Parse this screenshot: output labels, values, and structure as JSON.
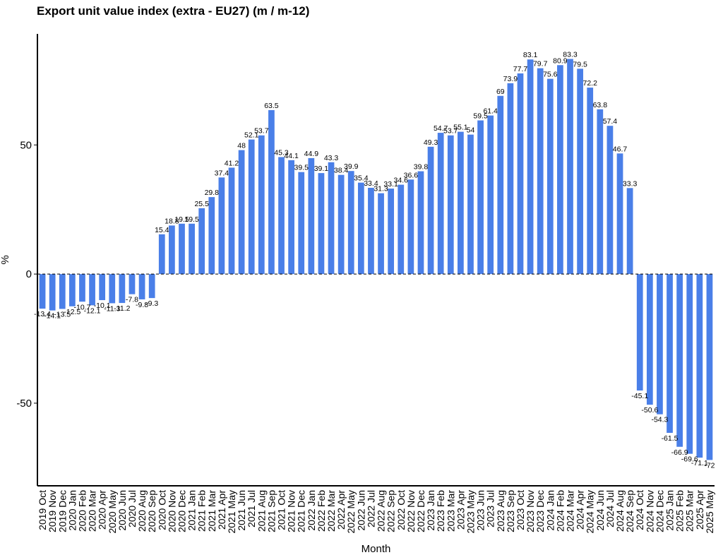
{
  "chart_data": {
    "type": "bar",
    "title": "Export unit value index (extra - EU27) (m / m-12)",
    "xlabel": "Month",
    "ylabel": "%",
    "ylim": [
      -82,
      93
    ],
    "yticks": [
      -50,
      0,
      50
    ],
    "grid": false,
    "bar_color": "#4A7FE8",
    "zero_line": "dashed",
    "categories": [
      "2019 Oct",
      "2019 Nov",
      "2019 Dec",
      "2020 Jan",
      "2020 Feb",
      "2020 Mar",
      "2020 Apr",
      "2020 May",
      "2020 Jun",
      "2020 Jul",
      "2020 Aug",
      "2020 Sep",
      "2020 Oct",
      "2020 Nov",
      "2020 Dec",
      "2021 Jan",
      "2021 Feb",
      "2021 Mar",
      "2021 Apr",
      "2021 May",
      "2021 Jun",
      "2021 Jul",
      "2021 Aug",
      "2021 Sep",
      "2021 Oct",
      "2021 Nov",
      "2021 Dec",
      "2022 Jan",
      "2022 Feb",
      "2022 Mar",
      "2022 Apr",
      "2022 May",
      "2022 Jun",
      "2022 Jul",
      "2022 Aug",
      "2022 Sep",
      "2022 Oct",
      "2022 Nov",
      "2022 Dec",
      "2023 Jan",
      "2023 Feb",
      "2023 Mar",
      "2023 Apr",
      "2023 May",
      "2023 Jun",
      "2023 Jul",
      "2023 Aug",
      "2023 Sep",
      "2023 Oct",
      "2023 Nov",
      "2023 Dec",
      "2024 Jan",
      "2024 Feb",
      "2024 Mar",
      "2024 Apr",
      "2024 May",
      "2024 Jun",
      "2024 Jul",
      "2024 Aug",
      "2024 Sep",
      "2024 Oct",
      "2024 Nov",
      "2024 Dec",
      "2025 Jan",
      "2025 Feb",
      "2025 Mar",
      "2025 Apr",
      "2025 May"
    ],
    "values": [
      -13.4,
      -14.1,
      -13.5,
      -12.5,
      -10.7,
      -12.1,
      -10.1,
      -11.3,
      -11.2,
      -7.8,
      -9.8,
      -9.3,
      15.4,
      18.8,
      19.5,
      19.5,
      25.5,
      29.8,
      37.4,
      41.2,
      48,
      52.1,
      53.7,
      63.5,
      45.3,
      44.1,
      39.5,
      44.9,
      39.1,
      43.3,
      38.4,
      39.9,
      35.4,
      33.4,
      31.3,
      33.1,
      34.6,
      36.6,
      39.8,
      49.3,
      54.7,
      53.7,
      55.1,
      54,
      59.5,
      61.4,
      69,
      73.9,
      77.7,
      83.1,
      79.7,
      75.6,
      80.9,
      83.3,
      79.5,
      72.2,
      63.8,
      57.4,
      46.7,
      33.3,
      -45.1,
      -50.6,
      -54.3,
      -61.5,
      -66.9,
      -69.6,
      -71.1,
      -72
    ],
    "data_labels": [
      "-13.4",
      "-14.1",
      "-13.5",
      "-12.5",
      "-10.7",
      "-12.1",
      "-10.1",
      "-11.3",
      "-11.2",
      "-7.8",
      "-9.8",
      "-9.3",
      "15.4",
      "18.8",
      "19.5",
      "19.5",
      "25.5",
      "29.8",
      "37.4",
      "41.2",
      "48",
      "52.1",
      "53.7",
      "63.5",
      "45.3",
      "44.1",
      "39.5",
      "44.9",
      "39.1",
      "43.3",
      "38.4",
      "39.9",
      "35.4",
      "33.4",
      "31.3",
      "33.1",
      "34.6",
      "36.6",
      "39.8",
      "49.3",
      "54.7",
      "53.7",
      "55.1",
      "54",
      "59.5",
      "61.4",
      "69",
      "73.9",
      "77.7",
      "83.1",
      "79.7",
      "75.6",
      "80.9",
      "83.3",
      "79.5",
      "72.2",
      "63.8",
      "57.4",
      "46.7",
      "33.3",
      "-45.1",
      "-50.6",
      "-54.3",
      "-61.5",
      "-66.9",
      "-69.6",
      "-71.1",
      "-72"
    ]
  }
}
